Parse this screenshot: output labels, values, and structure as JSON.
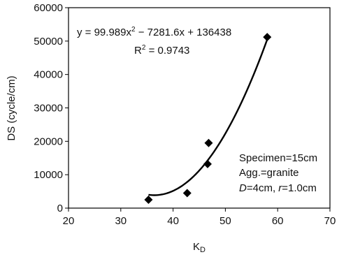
{
  "chart_data": {
    "type": "scatter",
    "title": "",
    "xlabel": "K",
    "xlabel_sub": "D",
    "ylabel": "DS (cycle/cm)",
    "xlim": [
      20,
      70
    ],
    "ylim": [
      0,
      60000
    ],
    "x_ticks": [
      "20",
      "30",
      "40",
      "50",
      "60",
      "70"
    ],
    "y_ticks": [
      "0",
      "10000",
      "20000",
      "30000",
      "40000",
      "50000",
      "60000"
    ],
    "points": [
      {
        "x": 35.3,
        "y": 2500
      },
      {
        "x": 42.7,
        "y": 4500
      },
      {
        "x": 46.6,
        "y": 13200
      },
      {
        "x": 46.8,
        "y": 19500
      },
      {
        "x": 58.0,
        "y": 51200
      }
    ],
    "trendline": {
      "type": "polynomial",
      "coefficients": [
        99.989,
        -7281.6,
        136438
      ],
      "x_range": [
        35.3,
        58.0
      ]
    },
    "grid": false,
    "marker": "diamond",
    "color": "#000000"
  },
  "annotations": {
    "equation_line1_prefix": "y = 99.989x",
    "equation_line1_sup": "2",
    "equation_line1_suffix": " − 7281.6x + 136438",
    "r2_prefix": "R",
    "r2_sup": "2",
    "r2_suffix": " = 0.9743",
    "specimen": "Specimen=15cm",
    "agg": "Agg.=granite",
    "d_label": "D",
    "d_rest": "=4cm, ",
    "r_label": "r",
    "r_rest": "=1.0cm"
  }
}
